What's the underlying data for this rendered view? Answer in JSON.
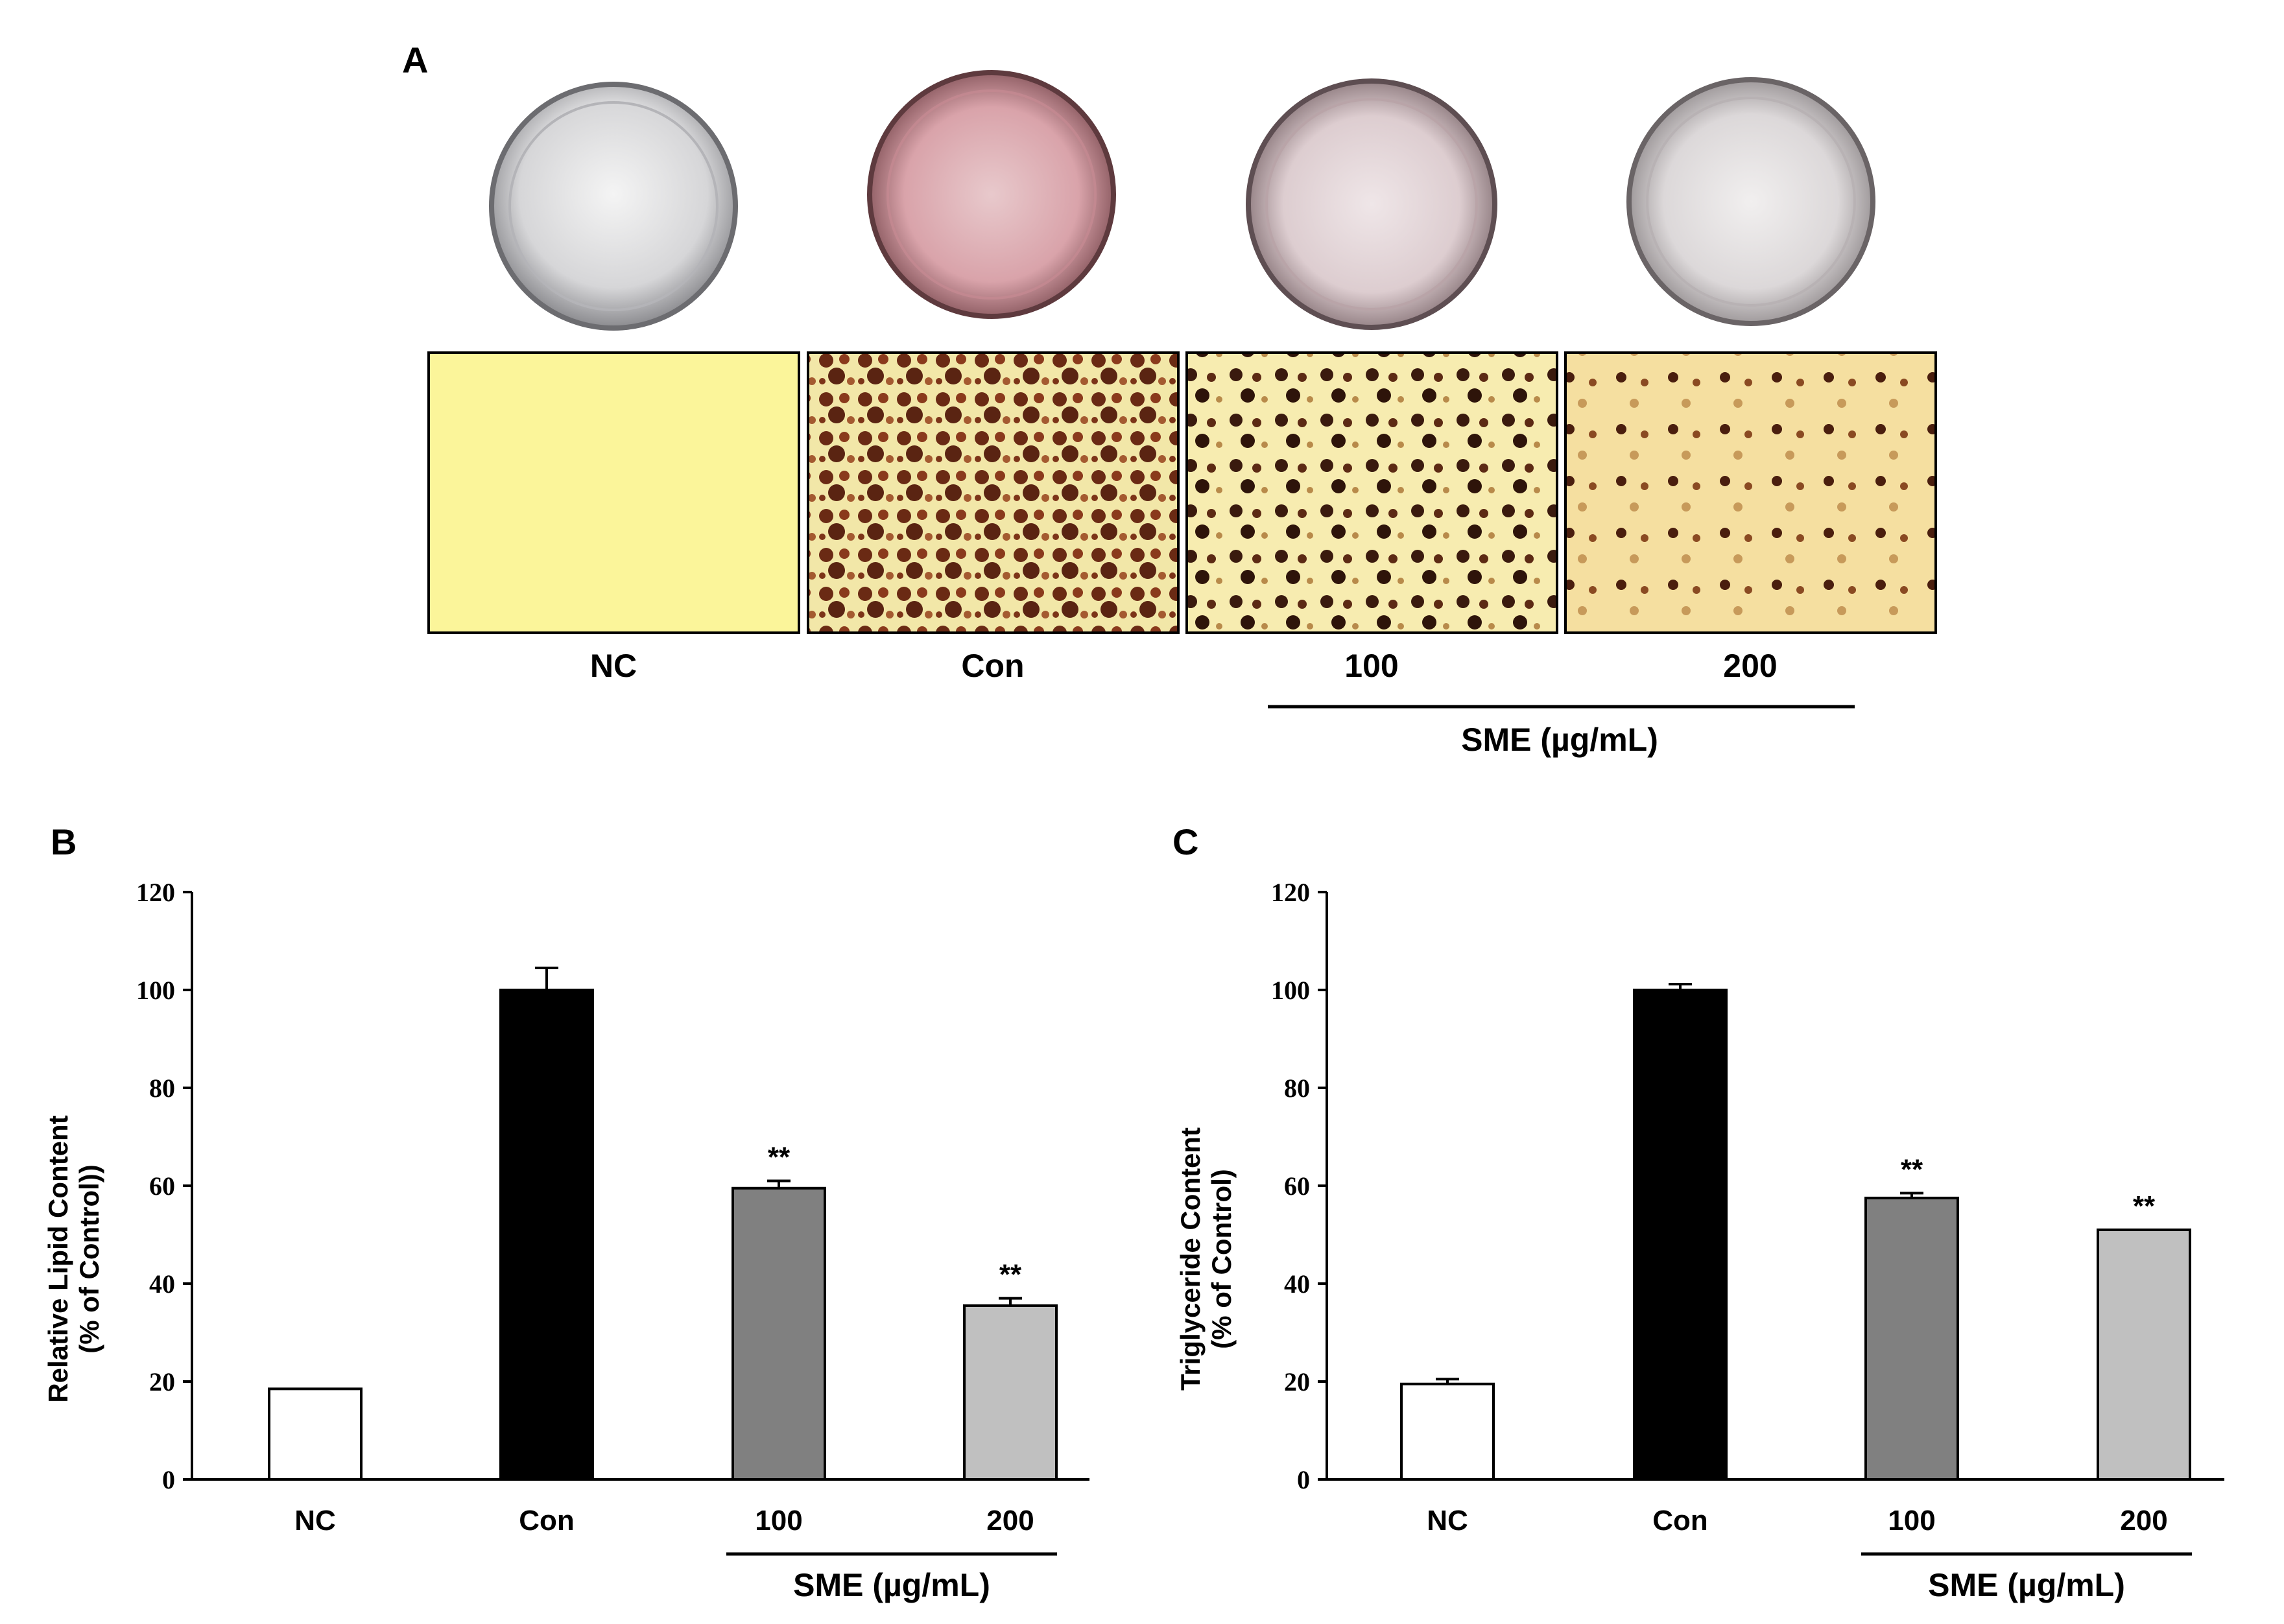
{
  "panel_a": {
    "label": "A",
    "groups": [
      "NC",
      "Con",
      "100",
      "200"
    ],
    "treatment_label": "SME (µg/mL)"
  },
  "chart_data": [
    {
      "type": "bar",
      "panel": "B",
      "categories": [
        "NC",
        "Con",
        "100",
        "200"
      ],
      "values": [
        18.5,
        100,
        59.5,
        35.5
      ],
      "errors": [
        0,
        4.5,
        1.5,
        1.5
      ],
      "significance": [
        "",
        "",
        "**",
        "**"
      ],
      "colors": [
        "#ffffff",
        "#000000",
        "#808080",
        "#c0c0c0"
      ],
      "ylabel_line1": "Relative Lipid Content",
      "ylabel_line2": "(% of Control))",
      "xlabel": "SME (µg/mL)",
      "yticks": [
        "0",
        "20",
        "40",
        "60",
        "80",
        "100",
        "120"
      ],
      "ylim": [
        0,
        120
      ]
    },
    {
      "type": "bar",
      "panel": "C",
      "categories": [
        "NC",
        "Con",
        "100",
        "200"
      ],
      "values": [
        19.5,
        100,
        57.5,
        51
      ],
      "errors": [
        1,
        1.2,
        1,
        0
      ],
      "significance": [
        "",
        "",
        "**",
        "**"
      ],
      "colors": [
        "#ffffff",
        "#000000",
        "#808080",
        "#c0c0c0"
      ],
      "ylabel_line1": "Triglyceride Content",
      "ylabel_line2": "(% of Control)",
      "xlabel": "SME (µg/mL)",
      "yticks": [
        "0",
        "20",
        "40",
        "60",
        "80",
        "100",
        "120"
      ],
      "ylim": [
        0,
        120
      ]
    }
  ]
}
